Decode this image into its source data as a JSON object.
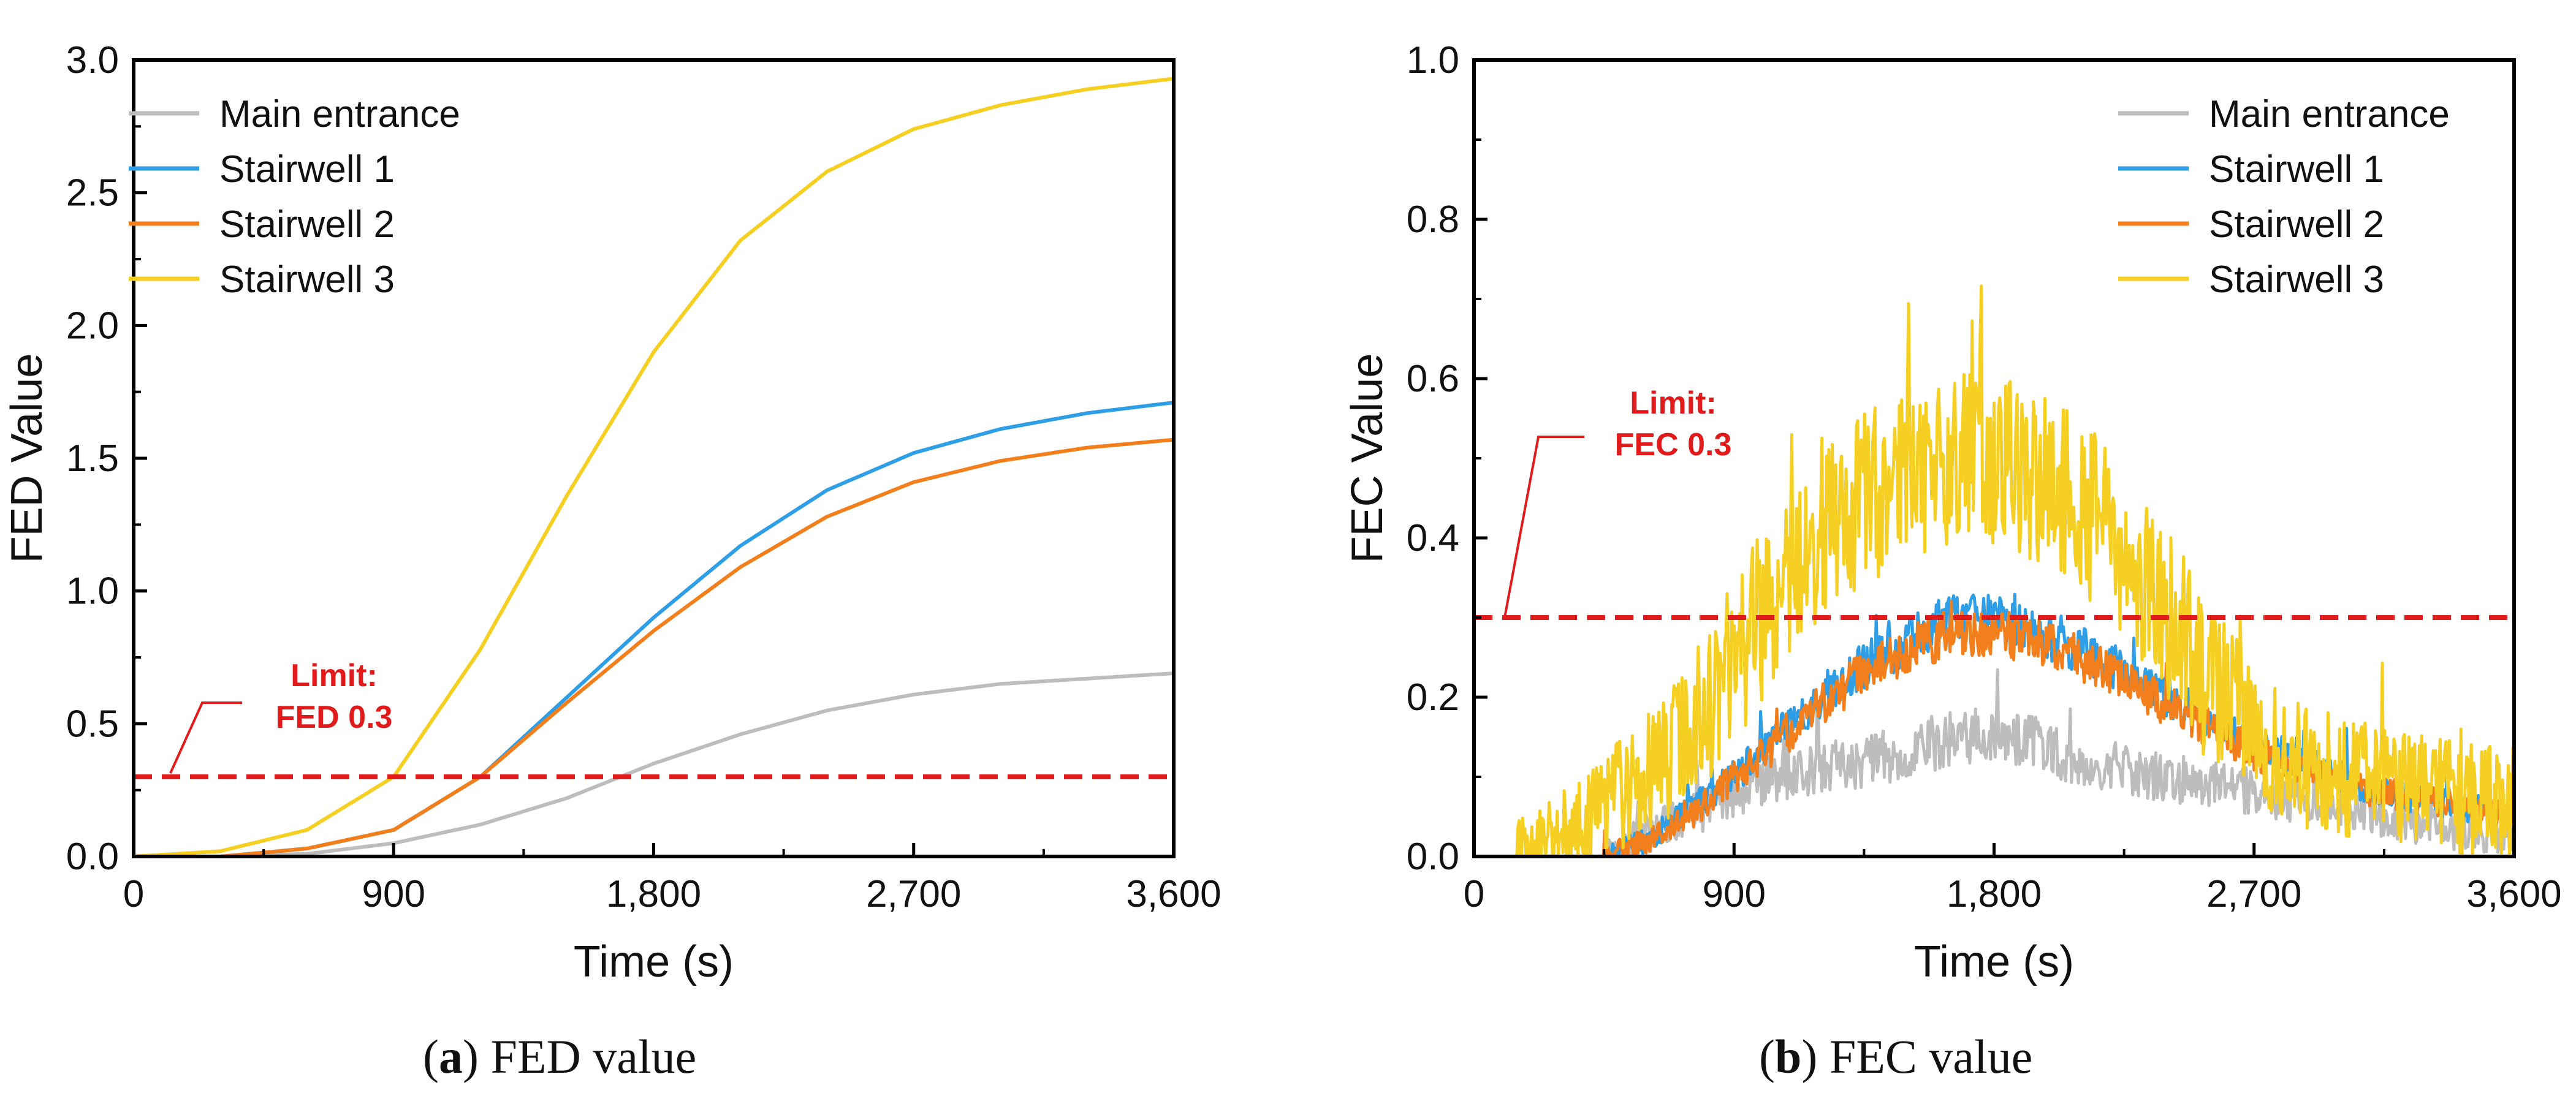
{
  "colors": {
    "main_entrance": "#bdbdbd",
    "stairwell_1": "#2e9ee6",
    "stairwell_2": "#f27f1b",
    "stairwell_3": "#f5cf22",
    "limit": "#e11b1b",
    "axis": "#000000"
  },
  "captions": {
    "a": {
      "letter": "a",
      "text": "FED value"
    },
    "b": {
      "letter": "b",
      "text": "FEC value"
    }
  },
  "chart_data": [
    {
      "id": "a",
      "type": "line",
      "xlabel": "Time (s)",
      "ylabel": "FED Value",
      "xlim": [
        0,
        3600
      ],
      "ylim": [
        0,
        3.0
      ],
      "xticks": [
        0,
        900,
        1800,
        2700,
        3600
      ],
      "xtick_labels": [
        "0",
        "900",
        "1,800",
        "2,700",
        "3,600"
      ],
      "yticks": [
        0,
        0.5,
        1.0,
        1.5,
        2.0,
        2.5,
        3.0
      ],
      "ytick_labels": [
        "0.0",
        "0.5",
        "1.0",
        "1.5",
        "2.0",
        "2.5",
        "3.0"
      ],
      "legend_position": "top-left",
      "legend": [
        "Main entrance",
        "Stairwell 1",
        "Stairwell 2",
        "Stairwell 3"
      ],
      "limit": {
        "value": 0.3,
        "label_line1": "Limit:",
        "label_line2": "FED 0.3"
      },
      "x": [
        0,
        300,
        600,
        900,
        1200,
        1500,
        1800,
        2100,
        2400,
        2700,
        3000,
        3300,
        3600
      ],
      "series": [
        {
          "name": "Main entrance",
          "key": "main_entrance",
          "values": [
            0,
            0,
            0.01,
            0.05,
            0.12,
            0.22,
            0.35,
            0.46,
            0.55,
            0.61,
            0.65,
            0.67,
            0.69
          ]
        },
        {
          "name": "Stairwell 1",
          "key": "stairwell_1",
          "values": [
            0,
            0,
            0.03,
            0.1,
            0.3,
            0.6,
            0.9,
            1.17,
            1.38,
            1.52,
            1.61,
            1.67,
            1.71
          ]
        },
        {
          "name": "Stairwell 2",
          "key": "stairwell_2",
          "values": [
            0,
            0,
            0.03,
            0.1,
            0.3,
            0.58,
            0.85,
            1.09,
            1.28,
            1.41,
            1.49,
            1.54,
            1.57
          ]
        },
        {
          "name": "Stairwell 3",
          "key": "stairwell_3",
          "values": [
            0,
            0.02,
            0.1,
            0.3,
            0.78,
            1.36,
            1.9,
            2.32,
            2.58,
            2.74,
            2.83,
            2.89,
            2.93
          ]
        }
      ]
    },
    {
      "id": "b",
      "type": "line",
      "xlabel": "Time (s)",
      "ylabel": "FEC Value",
      "xlim": [
        0,
        3600
      ],
      "ylim": [
        0,
        1.0
      ],
      "xticks": [
        0,
        900,
        1800,
        2700,
        3600
      ],
      "xtick_labels": [
        "0",
        "900",
        "1,800",
        "2,700",
        "3,600"
      ],
      "yticks": [
        0,
        0.2,
        0.4,
        0.6,
        0.8,
        1.0
      ],
      "ytick_labels": [
        "0.0",
        "0.2",
        "0.4",
        "0.6",
        "0.8",
        "1.0"
      ],
      "legend_position": "top-right",
      "legend": [
        "Main entrance",
        "Stairwell 1",
        "Stairwell 2",
        "Stairwell 3"
      ],
      "limit": {
        "value": 0.3,
        "label_line1": "Limit:",
        "label_line2": "FEC 0.3"
      },
      "noisy": true,
      "x": [
        0,
        150,
        300,
        450,
        600,
        750,
        900,
        1050,
        1200,
        1350,
        1500,
        1650,
        1800,
        1950,
        2100,
        2250,
        2400,
        2550,
        2700,
        2850,
        3000,
        3150,
        3300,
        3450,
        3600
      ],
      "series": [
        {
          "name": "Main entrance",
          "key": "main_entrance",
          "noise": 0.045,
          "values": [
            0,
            0,
            0,
            0,
            0.03,
            0.05,
            0.08,
            0.1,
            0.11,
            0.12,
            0.13,
            0.15,
            0.15,
            0.14,
            0.12,
            0.11,
            0.1,
            0.09,
            0.08,
            0.07,
            0.06,
            0.05,
            0.04,
            0.03,
            0.03
          ]
        },
        {
          "name": "Stairwell 1",
          "key": "stairwell_1",
          "noise": 0.03,
          "values": [
            0,
            0,
            0,
            0,
            0.02,
            0.06,
            0.1,
            0.15,
            0.2,
            0.24,
            0.27,
            0.3,
            0.3,
            0.28,
            0.26,
            0.23,
            0.2,
            0.17,
            0.14,
            0.12,
            0.1,
            0.08,
            0.07,
            0.06,
            0.06
          ]
        },
        {
          "name": "Stairwell 2",
          "key": "stairwell_2",
          "noise": 0.03,
          "values": [
            0,
            0,
            0,
            0,
            0.02,
            0.05,
            0.1,
            0.14,
            0.19,
            0.23,
            0.26,
            0.28,
            0.28,
            0.27,
            0.25,
            0.22,
            0.19,
            0.16,
            0.13,
            0.11,
            0.09,
            0.08,
            0.07,
            0.06,
            0.05
          ]
        },
        {
          "name": "Stairwell 3",
          "key": "stairwell_3",
          "noise": 0.11,
          "values": [
            0,
            0,
            0.02,
            0.06,
            0.1,
            0.16,
            0.24,
            0.33,
            0.4,
            0.45,
            0.48,
            0.5,
            0.5,
            0.48,
            0.44,
            0.38,
            0.3,
            0.22,
            0.16,
            0.12,
            0.1,
            0.09,
            0.08,
            0.07,
            0.07
          ]
        }
      ]
    }
  ]
}
